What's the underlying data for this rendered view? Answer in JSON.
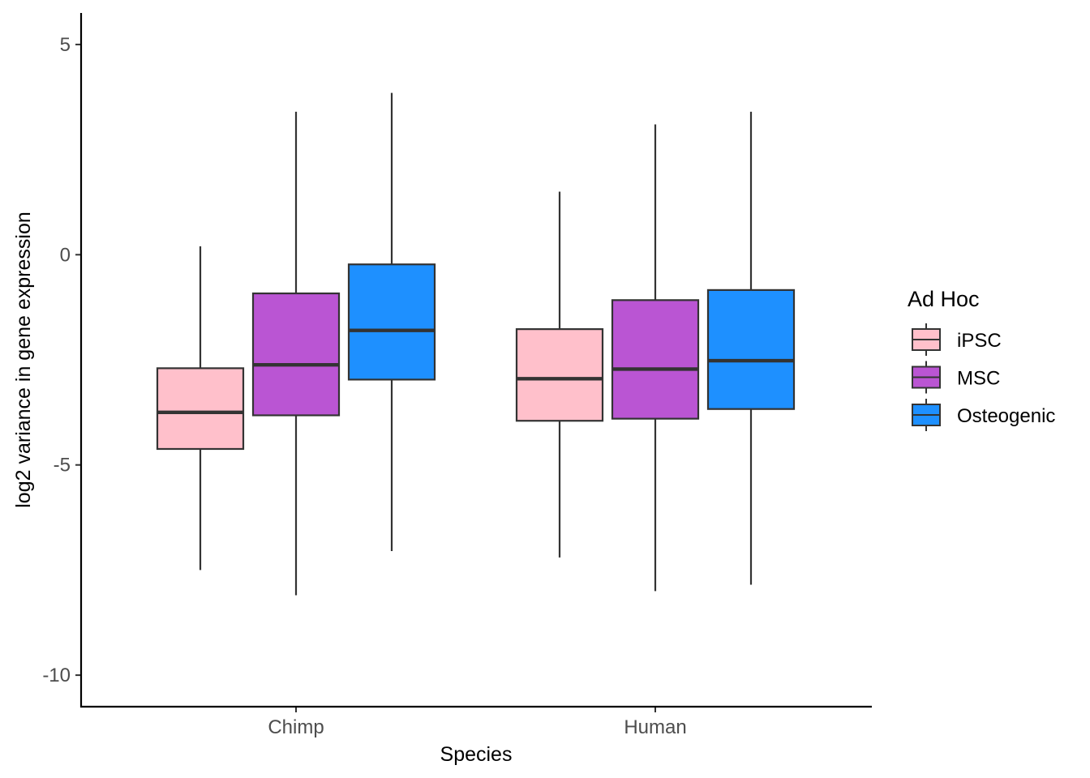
{
  "chart_data": {
    "type": "boxplot",
    "title": "",
    "xlabel": "Species",
    "ylabel": "log2 variance in gene expression",
    "categories": [
      "Chimp",
      "Human"
    ],
    "ylim": [
      -10.75,
      5.75
    ],
    "yticks": [
      5,
      0,
      -5,
      -10
    ],
    "ytick_labels": [
      "5",
      "0",
      "-5",
      "-10"
    ],
    "grid": false,
    "legend": {
      "title": "Ad Hoc",
      "position": "right"
    },
    "series": [
      {
        "name": "iPSC",
        "color": "#FFC0CB",
        "values": [
          {
            "category": "Chimp",
            "min": -7.5,
            "q1": -4.62,
            "median": -3.75,
            "q3": -2.7,
            "max": 0.2
          },
          {
            "category": "Human",
            "min": -7.2,
            "q1": -3.95,
            "median": -2.95,
            "q3": -1.77,
            "max": 1.5
          }
        ]
      },
      {
        "name": "MSC",
        "color": "#BA55D3",
        "values": [
          {
            "category": "Chimp",
            "min": -8.1,
            "q1": -3.82,
            "median": -2.62,
            "q3": -0.92,
            "max": 3.4
          },
          {
            "category": "Human",
            "min": -8.0,
            "q1": -3.9,
            "median": -2.72,
            "q3": -1.08,
            "max": 3.1
          }
        ]
      },
      {
        "name": "Osteogenic",
        "color": "#1E90FF",
        "values": [
          {
            "category": "Chimp",
            "min": -7.05,
            "q1": -2.97,
            "median": -1.8,
            "q3": -0.23,
            "max": 3.85
          },
          {
            "category": "Human",
            "min": -7.85,
            "q1": -3.67,
            "median": -2.52,
            "q3": -0.84,
            "max": 3.4
          }
        ]
      }
    ]
  }
}
